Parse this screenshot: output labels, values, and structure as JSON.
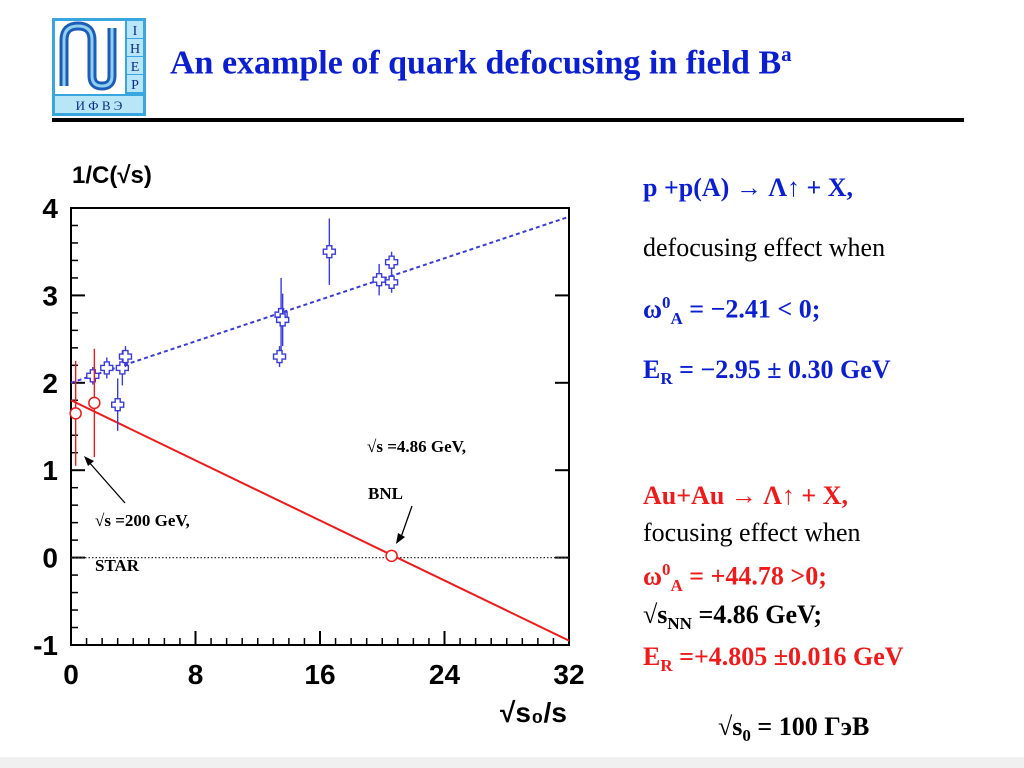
{
  "header": {
    "title": "An example of quark defocusing in field  B",
    "title_sup": "a",
    "logo_letters_right": [
      "I",
      "H",
      "E",
      "P"
    ],
    "logo_letters_bottom": "И Ф В Э"
  },
  "colors": {
    "title": "#0b1fd1",
    "blue_series": "#3b3bdc",
    "red_series": "#f01a1a",
    "logo_bg": "#3aa6e0",
    "logo_tile": "#b9e6f6"
  },
  "chart_data": {
    "type": "scatter",
    "ylabel": "1/C(√s)",
    "xlabel": "√s₀/s",
    "xlim": [
      0,
      32
    ],
    "ylim": [
      -1,
      4
    ],
    "x_ticks": [
      "0",
      "8",
      "16",
      "24",
      "32"
    ],
    "y_ticks": [
      "-1",
      "0",
      "1",
      "2",
      "3",
      "4"
    ],
    "zero_line": "dotted",
    "series": [
      {
        "marker": "cross",
        "color": "#3b3bdc",
        "points": [
          {
            "x": 1.4,
            "y": 2.08,
            "err": 0.1
          },
          {
            "x": 2.3,
            "y": 2.17,
            "err": 0.12
          },
          {
            "x": 3.0,
            "y": 1.75,
            "err": 0.3
          },
          {
            "x": 3.3,
            "y": 2.17,
            "err": 0.2
          },
          {
            "x": 3.5,
            "y": 2.3,
            "err": 0.12
          },
          {
            "x": 13.5,
            "y": 2.78,
            "err": 0.42
          },
          {
            "x": 13.6,
            "y": 2.72,
            "err": 0.3
          },
          {
            "x": 13.4,
            "y": 2.3,
            "err": 0.12
          },
          {
            "x": 16.6,
            "y": 3.5,
            "err": 0.38
          },
          {
            "x": 19.8,
            "y": 3.18,
            "err": 0.18
          },
          {
            "x": 20.6,
            "y": 3.38,
            "err": 0.12
          },
          {
            "x": 20.6,
            "y": 3.15,
            "err": 0.12
          }
        ],
        "fit": {
          "x": [
            0,
            32
          ],
          "y": [
            2.0,
            3.9
          ],
          "style": "dashed"
        }
      },
      {
        "marker": "circle",
        "color": "#f01a1a",
        "points": [
          {
            "x": 0.3,
            "y": 1.65,
            "err": 0.6
          },
          {
            "x": 1.5,
            "y": 1.77,
            "err": 0.62
          },
          {
            "x": 20.6,
            "y": 0.02,
            "err": 0
          }
        ],
        "fit": {
          "x": [
            0,
            32
          ],
          "y": [
            1.8,
            -0.95
          ],
          "style": "solid"
        }
      }
    ],
    "annotations": {
      "bnl_line1": "√s =4.86 GeV,",
      "bnl_line2": "BNL",
      "star_line1": "√s =200 GeV,",
      "star_line2": "STAR"
    }
  },
  "panel_pp": {
    "reaction": "p +p(A) → Λ↑ + X,",
    "effect": "defocusing  effect when",
    "omega_pre": "ω",
    "omega_sup": "0",
    "omega_sub": "A",
    "omega_rest": " = −2.41 < 0;",
    "er_pre": "E",
    "er_sub": "R",
    "er_rest": " = −2.95  ± 0.30 GeV"
  },
  "panel_auau": {
    "reaction": "Au+Au → Λ↑ + X,",
    "effect": "focusing  effect when",
    "omega_pre": "ω",
    "omega_sup": "0",
    "omega_sub": "A",
    "omega_rest": " = +44.78 >0;",
    "snn_pre": "√s",
    "snn_sub": "NN",
    "snn_rest": " =4.86 GeV;",
    "er_pre": "E",
    "er_sub": "R",
    "er_rest": " =+4.805 ±0.016 GeV"
  },
  "footer": {
    "s0_pre": "√s",
    "s0_sub": "0",
    "s0_rest": " = 100 ГэВ"
  }
}
